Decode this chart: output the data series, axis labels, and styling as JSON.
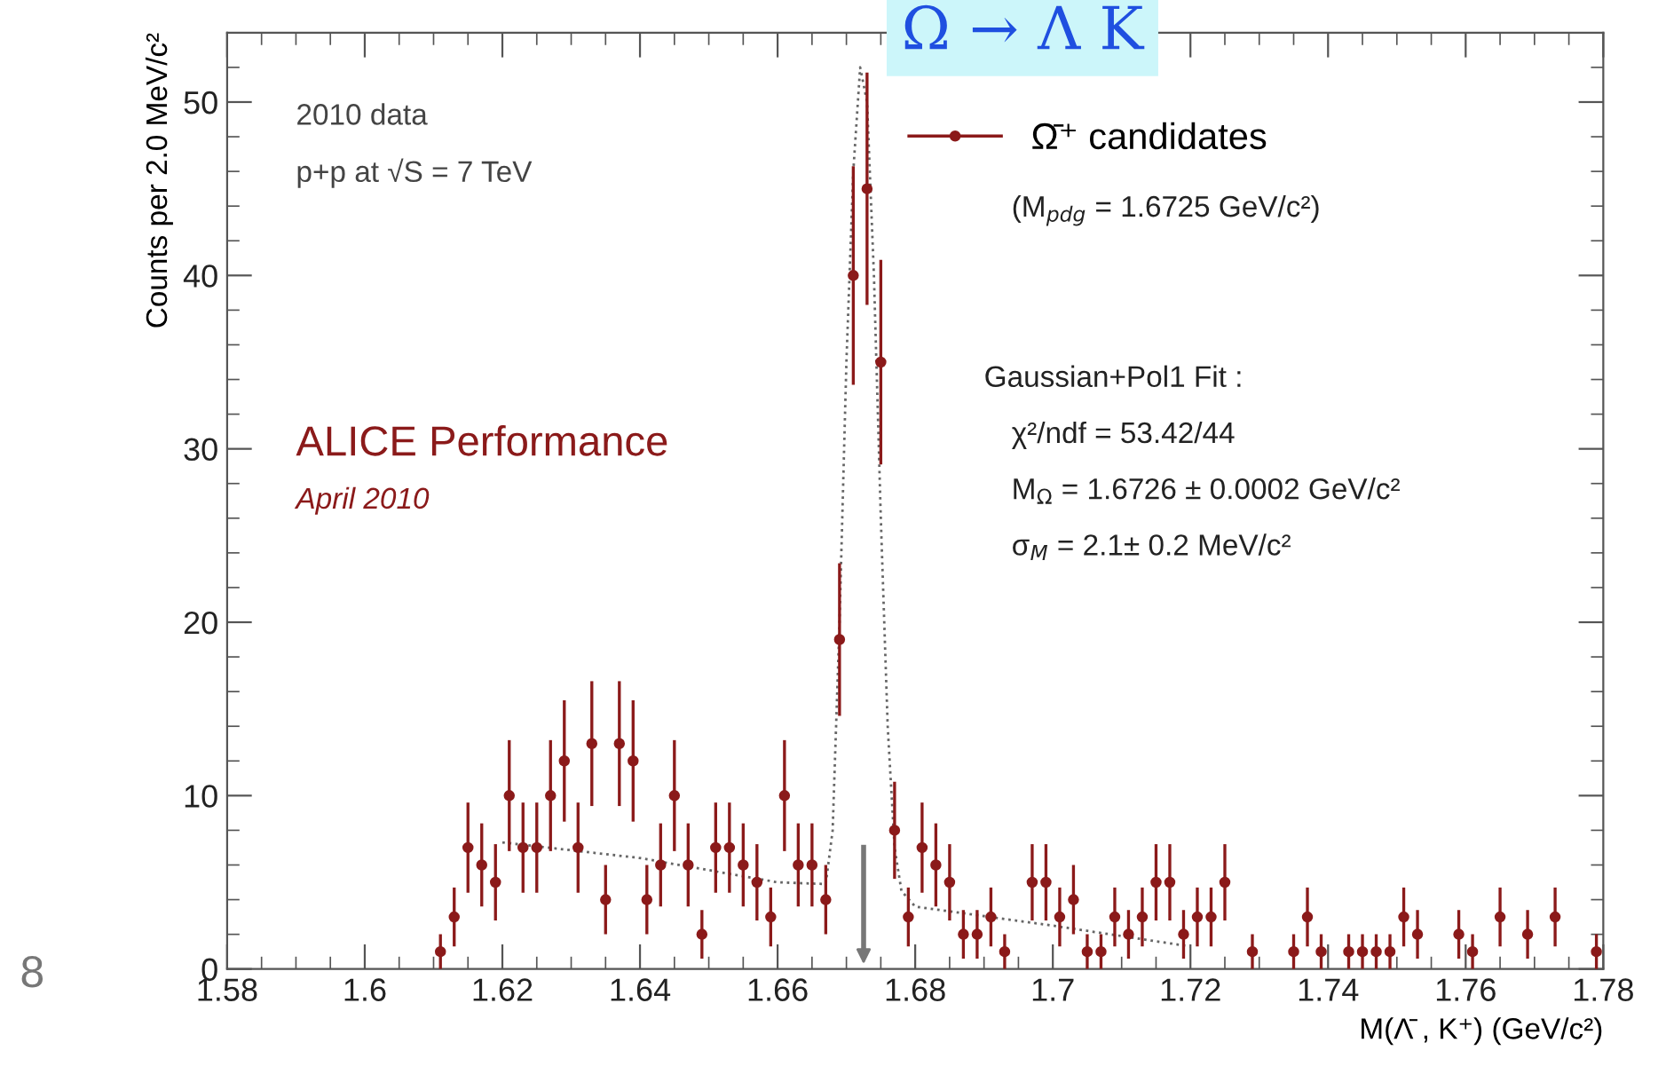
{
  "chart_data": {
    "type": "scatter",
    "title": "Ω → Λ K",
    "xlabel": "M(Λ̄ , K⁺) (GeV/c²)",
    "ylabel": "Counts per 2.0 MeV/c²",
    "x": [
      1.611,
      1.613,
      1.615,
      1.617,
      1.619,
      1.621,
      1.623,
      1.625,
      1.627,
      1.629,
      1.631,
      1.633,
      1.635,
      1.637,
      1.639,
      1.641,
      1.643,
      1.645,
      1.647,
      1.649,
      1.651,
      1.653,
      1.655,
      1.657,
      1.659,
      1.661,
      1.663,
      1.665,
      1.667,
      1.669,
      1.671,
      1.673,
      1.675,
      1.677,
      1.679,
      1.681,
      1.683,
      1.685,
      1.687,
      1.689,
      1.691,
      1.693,
      1.695,
      1.697,
      1.699,
      1.701,
      1.703,
      1.705,
      1.707,
      1.709,
      1.711,
      1.713,
      1.715,
      1.717,
      1.719,
      1.721,
      1.723,
      1.725,
      1.727,
      1.729,
      1.731,
      1.733,
      1.735,
      1.737,
      1.739,
      1.741,
      1.743,
      1.745,
      1.747,
      1.749,
      1.751,
      1.753,
      1.755,
      1.757,
      1.759,
      1.761,
      1.763,
      1.765,
      1.767,
      1.769,
      1.771,
      1.773,
      1.775,
      1.777,
      1.779
    ],
    "series": [
      {
        "name": "Ω̄⁺ candidates",
        "color": "#8b1a1a",
        "marker": "circle",
        "values": [
          1,
          3,
          7,
          6,
          5,
          10,
          7,
          7,
          10,
          12,
          7,
          13,
          4,
          13,
          12,
          4,
          6,
          10,
          6,
          2,
          7,
          7,
          6,
          5,
          3,
          10,
          6,
          6,
          4,
          19,
          40,
          45,
          35,
          8,
          3,
          7,
          6,
          5,
          2,
          2,
          3,
          1,
          null,
          5,
          5,
          3,
          4,
          1,
          1,
          3,
          2,
          3,
          5,
          5,
          2,
          3,
          3,
          5,
          null,
          1,
          null,
          null,
          1,
          3,
          1,
          null,
          1,
          1,
          1,
          1,
          3,
          2,
          null,
          null,
          2,
          1,
          null,
          3,
          null,
          2,
          null,
          3,
          null,
          null,
          1
        ],
        "errors": [
          1,
          1.7,
          2.6,
          2.4,
          2.2,
          3.2,
          2.6,
          2.6,
          3.2,
          3.5,
          2.6,
          3.6,
          2,
          3.6,
          3.5,
          2,
          2.4,
          3.2,
          2.4,
          1.4,
          2.6,
          2.6,
          2.4,
          2.2,
          1.7,
          3.2,
          2.4,
          2.4,
          2,
          4.4,
          6.3,
          6.7,
          5.9,
          2.8,
          1.7,
          2.6,
          2.4,
          2.2,
          1.4,
          1.4,
          1.7,
          1,
          null,
          2.2,
          2.2,
          1.7,
          2,
          1,
          1,
          1.7,
          1.4,
          1.7,
          2.2,
          2.2,
          1.4,
          1.7,
          1.7,
          2.2,
          null,
          1,
          null,
          null,
          1,
          1.7,
          1,
          null,
          1,
          1,
          1,
          1,
          1.7,
          1.4,
          null,
          null,
          1.4,
          1,
          null,
          1.7,
          null,
          1.4,
          null,
          1.7,
          null,
          null,
          1
        ]
      },
      {
        "type": "line",
        "color": "#666666",
        "line_style": "dotted",
        "x": [
          1.62,
          1.64,
          1.66,
          1.667,
          1.668,
          1.669,
          1.67,
          1.671,
          1.672,
          1.673,
          1.674,
          1.675,
          1.676,
          1.677,
          1.678,
          1.68,
          1.7,
          1.72
        ],
        "values": [
          7.3,
          6.4,
          5.0,
          4.9,
          8,
          20,
          35,
          46,
          52,
          50,
          40,
          26,
          14,
          7,
          4.5,
          3.6,
          2.5,
          1.3
        ]
      }
    ],
    "xlim": [
      1.58,
      1.78
    ],
    "ylim": [
      0,
      54
    ],
    "xticks": [
      1.58,
      1.6,
      1.62,
      1.64,
      1.66,
      1.68,
      1.7,
      1.72,
      1.74,
      1.76,
      1.78
    ],
    "yticks": [
      0,
      10,
      20,
      30,
      40,
      50
    ],
    "ref_lines": [
      {
        "axis": "x",
        "value": 1.6725,
        "color": "#777777"
      }
    ],
    "legend": "top right",
    "grid": false,
    "annotations": [
      "2010 data",
      "p+p at √S = 7 TeV",
      "ALICE Performance",
      "April 2010",
      "(M$_{pdg}$ = 1.6725 GeV/c²)",
      "Gaussian+Pol1 Fit :",
      "χ²/ndf = 53.42/44",
      "M$_{Ω}$ = 1.6726 ± 0.0002 GeV/c²",
      "σ$_{M}$ = 2.1± 0.2 MeV/c²",
      "8"
    ]
  }
}
